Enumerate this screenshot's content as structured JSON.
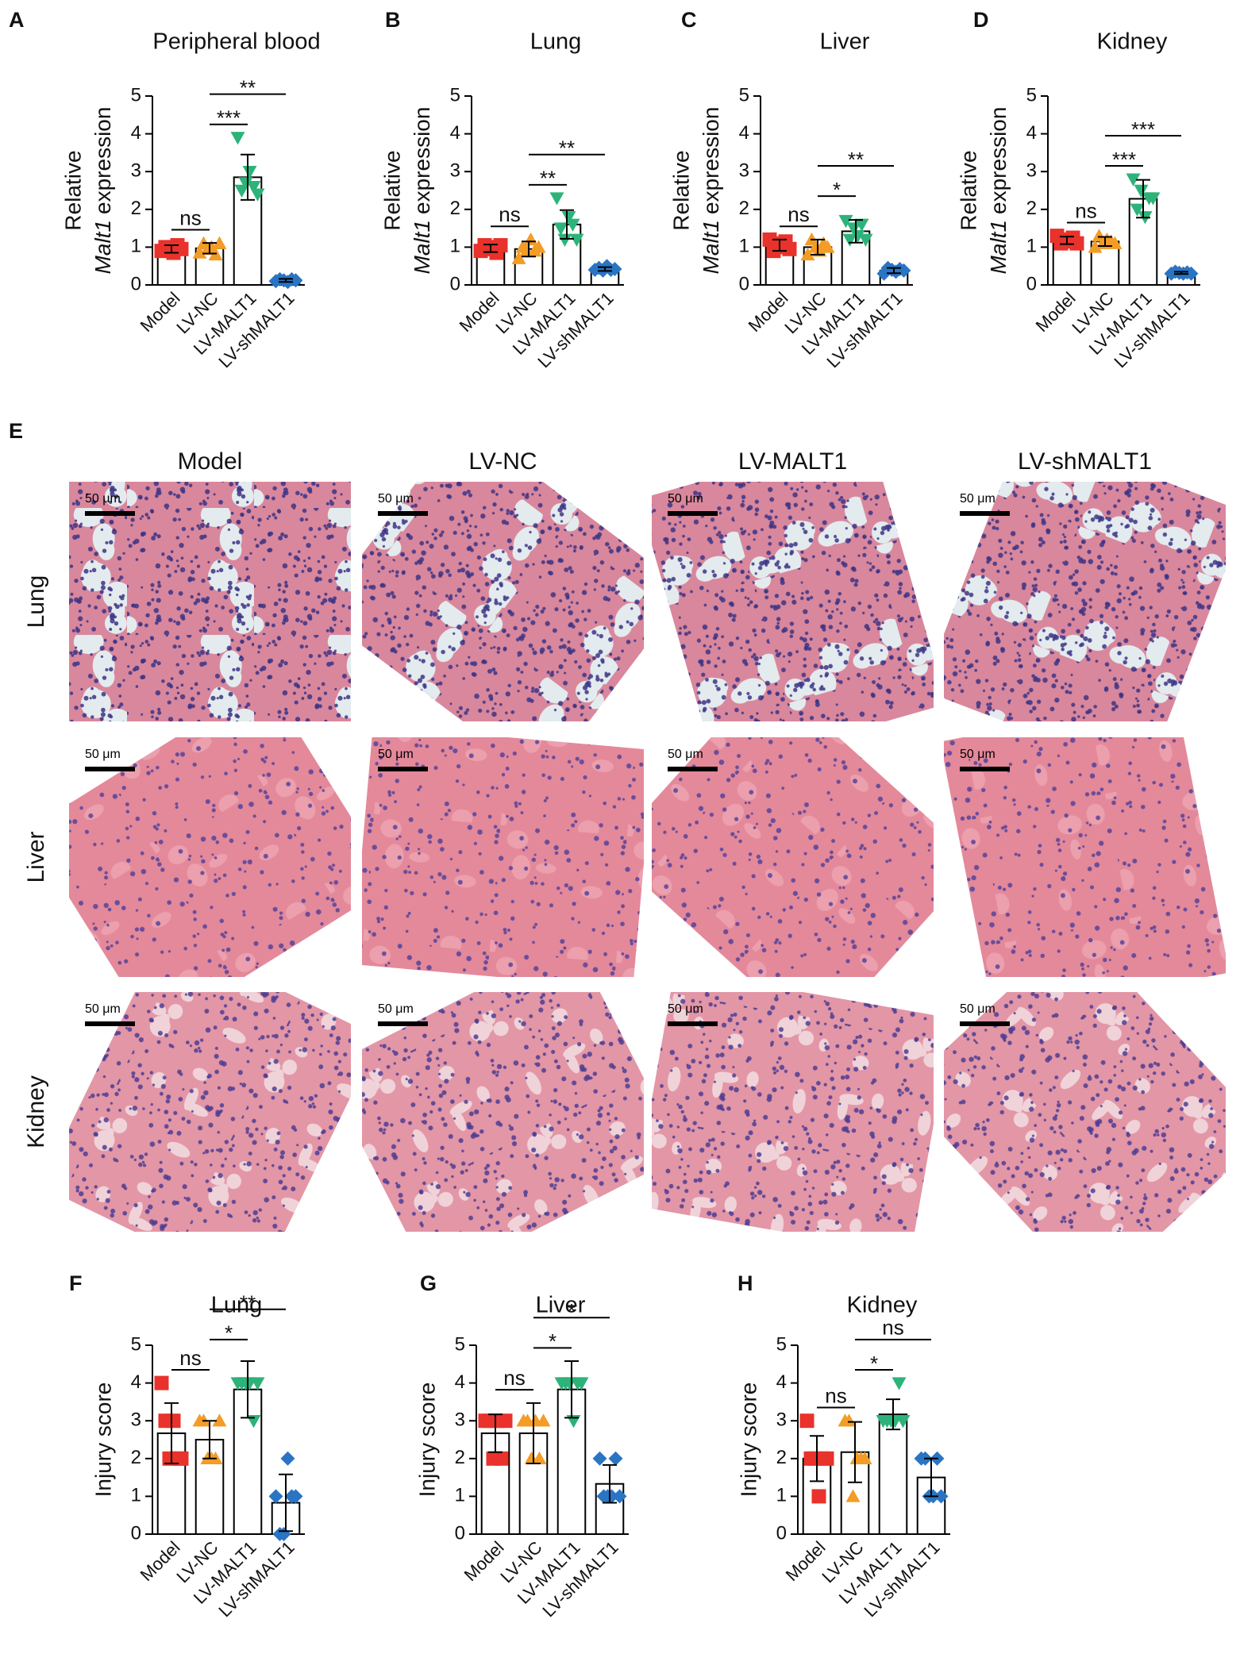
{
  "chart_data": [
    {
      "type": "bar",
      "panel": "A",
      "title": "Peripheral blood",
      "ylabel": "Relative",
      "ylabel_italic": "Malt1",
      "ylabel_rest": "expression",
      "categories": [
        "Model",
        "LV-NC",
        "LV-MALT1",
        "LV-shMALT1"
      ],
      "colors": [
        "#e8322b",
        "#f39c26",
        "#2db37a",
        "#2a74c4"
      ],
      "markers": [
        "square",
        "triangle-up",
        "triangle-down",
        "diamond"
      ],
      "values": [
        0.95,
        0.97,
        2.85,
        0.12
      ],
      "errors": [
        0.1,
        0.14,
        0.6,
        0.04
      ],
      "points": [
        [
          0.9,
          1.0,
          0.95,
          0.85,
          1.05,
          0.95
        ],
        [
          0.85,
          1.1,
          0.95,
          1.0,
          0.8,
          1.1
        ],
        [
          3.9,
          2.5,
          2.7,
          3.0,
          2.6,
          2.4
        ],
        [
          0.1,
          0.15,
          0.12,
          0.08,
          0.15,
          0.12
        ]
      ],
      "significance": [
        {
          "pair": [
            0,
            1
          ],
          "label": "ns"
        },
        {
          "pair": [
            1,
            2
          ],
          "label": "***"
        },
        {
          "pair": [
            1,
            3
          ],
          "label": "**"
        }
      ],
      "ylim": [
        0,
        5
      ],
      "yticks": [
        0,
        1,
        2,
        3,
        4,
        5
      ]
    },
    {
      "type": "bar",
      "panel": "B",
      "title": "Lung",
      "ylabel": "Relative",
      "ylabel_italic": "Malt1",
      "ylabel_rest": "expression",
      "categories": [
        "Model",
        "LV-NC",
        "LV-MALT1",
        "LV-shMALT1"
      ],
      "colors": [
        "#e8322b",
        "#f39c26",
        "#2db37a",
        "#2a74c4"
      ],
      "markers": [
        "square",
        "triangle-up",
        "triangle-down",
        "diamond"
      ],
      "values": [
        0.97,
        0.95,
        1.6,
        0.42
      ],
      "errors": [
        0.1,
        0.2,
        0.38,
        0.05
      ],
      "points": [
        [
          0.9,
          1.05,
          0.95,
          1.0,
          0.85,
          1.05
        ],
        [
          0.7,
          1.0,
          0.9,
          1.2,
          0.9,
          1.0
        ],
        [
          2.3,
          1.5,
          1.2,
          1.8,
          1.6,
          1.2
        ],
        [
          0.4,
          0.45,
          0.38,
          0.5,
          0.4,
          0.42
        ]
      ],
      "significance": [
        {
          "pair": [
            0,
            1
          ],
          "label": "ns"
        },
        {
          "pair": [
            1,
            2
          ],
          "label": "**"
        },
        {
          "pair": [
            1,
            3
          ],
          "label": "**"
        }
      ],
      "ylim": [
        0,
        5
      ],
      "yticks": [
        0,
        1,
        2,
        3,
        4,
        5
      ]
    },
    {
      "type": "bar",
      "panel": "C",
      "title": "Liver",
      "ylabel": "Relative",
      "ylabel_italic": "Malt1",
      "ylabel_rest": "expression",
      "categories": [
        "Model",
        "LV-NC",
        "LV-MALT1",
        "LV-shMALT1"
      ],
      "colors": [
        "#e8322b",
        "#f39c26",
        "#2db37a",
        "#2a74c4"
      ],
      "markers": [
        "square",
        "triangle-up",
        "triangle-down",
        "diamond"
      ],
      "values": [
        1.05,
        1.0,
        1.42,
        0.38
      ],
      "errors": [
        0.15,
        0.2,
        0.3,
        0.07
      ],
      "points": [
        [
          1.2,
          0.9,
          1.1,
          1.0,
          1.15,
          0.95
        ],
        [
          0.8,
          1.2,
          1.0,
          0.9,
          1.1,
          1.0
        ],
        [
          1.7,
          1.2,
          1.5,
          1.3,
          1.6,
          1.2
        ],
        [
          0.3,
          0.45,
          0.4,
          0.35,
          0.42,
          0.38
        ]
      ],
      "significance": [
        {
          "pair": [
            0,
            1
          ],
          "label": "ns"
        },
        {
          "pair": [
            1,
            2
          ],
          "label": "*"
        },
        {
          "pair": [
            1,
            3
          ],
          "label": "**"
        }
      ],
      "ylim": [
        0,
        5
      ],
      "yticks": [
        0,
        1,
        2,
        3,
        4,
        5
      ]
    },
    {
      "type": "bar",
      "panel": "D",
      "title": "Kidney",
      "ylabel": "Relative",
      "ylabel_italic": "Malt1",
      "ylabel_rest": "expression",
      "categories": [
        "Model",
        "LV-NC",
        "LV-MALT1",
        "LV-shMALT1"
      ],
      "colors": [
        "#e8322b",
        "#f39c26",
        "#2db37a",
        "#2a74c4"
      ],
      "markers": [
        "square",
        "triangle-up",
        "triangle-down",
        "diamond"
      ],
      "values": [
        1.18,
        1.15,
        2.28,
        0.32
      ],
      "errors": [
        0.1,
        0.12,
        0.5,
        0.03
      ],
      "points": [
        [
          1.3,
          1.1,
          1.2,
          1.15,
          1.25,
          1.1
        ],
        [
          1.0,
          1.3,
          1.1,
          1.2,
          1.15,
          1.1
        ],
        [
          2.8,
          2.0,
          2.5,
          1.8,
          2.3,
          2.3
        ],
        [
          0.3,
          0.35,
          0.32,
          0.3,
          0.33,
          0.3
        ]
      ],
      "significance": [
        {
          "pair": [
            0,
            1
          ],
          "label": "ns"
        },
        {
          "pair": [
            1,
            2
          ],
          "label": "***"
        },
        {
          "pair": [
            1,
            3
          ],
          "label": "***"
        }
      ],
      "ylim": [
        0,
        5
      ],
      "yticks": [
        0,
        1,
        2,
        3,
        4,
        5
      ]
    },
    {
      "type": "bar",
      "panel": "F",
      "title": "Lung",
      "ylabel": "Injury score",
      "categories": [
        "Model",
        "LV-NC",
        "LV-MALT1",
        "LV-shMALT1"
      ],
      "colors": [
        "#e8322b",
        "#f39c26",
        "#2db37a",
        "#2a74c4"
      ],
      "markers": [
        "square",
        "triangle-up",
        "triangle-down",
        "diamond"
      ],
      "values": [
        2.67,
        2.5,
        3.83,
        0.83
      ],
      "errors": [
        0.8,
        0.5,
        0.75,
        0.75
      ],
      "points": [
        [
          4,
          3,
          2,
          3,
          2,
          2
        ],
        [
          3,
          3,
          2,
          2,
          2,
          3
        ],
        [
          4,
          4,
          4,
          4,
          3,
          4
        ],
        [
          1,
          0,
          0,
          2,
          1,
          1
        ]
      ],
      "significance": [
        {
          "pair": [
            0,
            1
          ],
          "label": "ns"
        },
        {
          "pair": [
            1,
            2
          ],
          "label": "*"
        },
        {
          "pair": [
            1,
            3
          ],
          "label": "**"
        }
      ],
      "ylim": [
        0,
        5
      ],
      "yticks": [
        0,
        1,
        2,
        3,
        4,
        5
      ]
    },
    {
      "type": "bar",
      "panel": "G",
      "title": "Liver",
      "ylabel": "Injury score",
      "categories": [
        "Model",
        "LV-NC",
        "LV-MALT1",
        "LV-shMALT1"
      ],
      "colors": [
        "#e8322b",
        "#f39c26",
        "#2db37a",
        "#2a74c4"
      ],
      "markers": [
        "square",
        "triangle-up",
        "triangle-down",
        "diamond"
      ],
      "values": [
        2.67,
        2.67,
        3.83,
        1.33
      ],
      "errors": [
        0.5,
        0.8,
        0.75,
        0.5
      ],
      "points": [
        [
          3,
          3,
          2,
          3,
          2,
          3
        ],
        [
          3,
          3,
          2,
          3,
          2,
          3
        ],
        [
          4,
          4,
          4,
          3,
          4,
          4
        ],
        [
          2,
          1,
          1,
          1,
          2,
          1
        ]
      ],
      "significance": [
        {
          "pair": [
            0,
            1
          ],
          "label": "ns"
        },
        {
          "pair": [
            1,
            2
          ],
          "label": "*"
        },
        {
          "pair": [
            1,
            3
          ],
          "label": "*"
        }
      ],
      "ylim": [
        0,
        5
      ],
      "yticks": [
        0,
        1,
        2,
        3,
        4,
        5
      ]
    },
    {
      "type": "bar",
      "panel": "H",
      "title": "Kidney",
      "ylabel": "Injury score",
      "categories": [
        "Model",
        "LV-NC",
        "LV-MALT1",
        "LV-shMALT1"
      ],
      "colors": [
        "#e8322b",
        "#f39c26",
        "#2db37a",
        "#2a74c4"
      ],
      "markers": [
        "square",
        "triangle-up",
        "triangle-down",
        "diamond"
      ],
      "values": [
        2.0,
        2.17,
        3.17,
        1.5
      ],
      "errors": [
        0.6,
        0.8,
        0.4,
        0.5
      ],
      "points": [
        [
          3,
          2,
          2,
          1,
          2,
          2
        ],
        [
          3,
          3,
          1,
          2,
          2,
          2
        ],
        [
          3,
          3,
          3,
          3,
          4,
          3
        ],
        [
          2,
          2,
          1,
          1,
          2,
          1
        ]
      ],
      "significance": [
        {
          "pair": [
            0,
            1
          ],
          "label": "ns"
        },
        {
          "pair": [
            1,
            2
          ],
          "label": "*"
        },
        {
          "pair": [
            1,
            3
          ],
          "label": "ns"
        }
      ],
      "ylim": [
        0,
        5
      ],
      "yticks": [
        0,
        1,
        2,
        3,
        4,
        5
      ]
    }
  ],
  "histology": {
    "panel": "E",
    "columns": [
      "Model",
      "LV-NC",
      "LV-MALT1",
      "LV-shMALT1"
    ],
    "rows": [
      "Lung",
      "Liver",
      "Kidney"
    ],
    "scale_bar": "50 μm"
  }
}
